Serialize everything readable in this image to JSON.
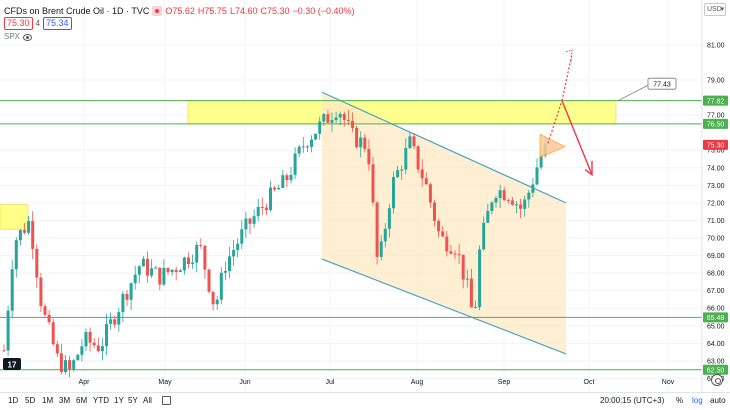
{
  "legend": {
    "title": "CFDs on Brent Crude Oil · 1D · TVC",
    "open": "O75.62",
    "high": "H75.75",
    "low": "L74.60",
    "close": "C75.30",
    "change": "−0.30 (−0.40%)",
    "bid": "75.30",
    "spread": "4",
    "ask": "75.34",
    "compare_symbol": "SPX"
  },
  "currency": "USD",
  "chart_data": {
    "type": "candlestick",
    "symbol": "CFDs on Brent Crude Oil",
    "interval": "1D",
    "y_axis": {
      "ticks": [
        "81.00",
        "79.00",
        "77.00",
        "75.00",
        "74.00",
        "73.00",
        "72.00",
        "71.00",
        "70.00",
        "69.00",
        "68.00",
        "67.00",
        "66.00",
        "65.00",
        "64.00",
        "63.00",
        "62.00"
      ],
      "range": [
        61.8,
        82.3
      ]
    },
    "x_axis": {
      "ticks": [
        "Apr",
        "May",
        "Jun",
        "Jul",
        "Aug",
        "Sep",
        "Oct",
        "Nov"
      ]
    },
    "price_labels": [
      {
        "value": 77.82,
        "text": "77.82",
        "color": "#4caf50"
      },
      {
        "value": 76.5,
        "text": "76.50",
        "color": "#4caf50"
      },
      {
        "value": 75.3,
        "text": "75.30",
        "color": "#f23645"
      },
      {
        "value": 65.48,
        "text": "65.48",
        "color": "#4caf50"
      },
      {
        "value": 62.5,
        "text": "62.50",
        "color": "#4caf50"
      }
    ],
    "horizontal_levels": [
      77.82,
      76.5,
      65.48,
      62.5
    ],
    "callout": {
      "text": "77.43",
      "value": 77.43
    },
    "series_colors": {
      "up": "#26a69a",
      "down": "#ef5350"
    }
  },
  "bottom_bar": {
    "ranges": [
      "1D",
      "5D",
      "1M",
      "3M",
      "6M",
      "YTD",
      "1Y",
      "5Y",
      "All"
    ],
    "clock": "20:00:15 (UTC+3)",
    "percent": "%",
    "log": "log",
    "auto": "auto"
  }
}
